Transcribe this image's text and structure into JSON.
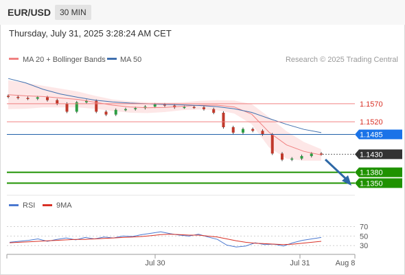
{
  "header": {
    "symbol": "EUR/USD",
    "timeframe": "30 MIN"
  },
  "datetime": "Thursday, July 31, 2025 3:28:24 AM CET",
  "legend": {
    "ma20": "MA 20 + Bollinger Bands",
    "ma50": "MA 50",
    "research": "Research © 2025 Trading Central",
    "rsi": "RSI",
    "rsi_ma": "9MA"
  },
  "colors": {
    "ma20": "#f08080",
    "ma50": "#3f6fae",
    "bollinger_fill": "#fde4e4",
    "bull": "#2e9e44",
    "bear": "#c0392b",
    "support": "#1f9200",
    "resistance": "#f08080",
    "pivot": "#1f5fa8",
    "badge_blue": "#1a73e8",
    "badge_dark": "#333333",
    "badge_green": "#1f9200",
    "arrow": "#2d68a6",
    "rsi": "#4a78d0",
    "rsi_ma": "#d93025"
  },
  "chart_data": [
    {
      "type": "line",
      "title": "EUR/USD 30 MIN",
      "price_range": [
        1.1324,
        1.1667
      ],
      "current_price": 1.143,
      "levels": [
        {
          "value": 1.157,
          "label": "1.1570",
          "kind": "resistance"
        },
        {
          "value": 1.152,
          "label": "1.1520",
          "kind": "resistance"
        },
        {
          "value": 1.1485,
          "label": "1.1485",
          "kind": "pivot"
        },
        {
          "value": 1.143,
          "label": "1.1430",
          "kind": "current"
        },
        {
          "value": 1.138,
          "label": "1.1380",
          "kind": "support"
        },
        {
          "value": 1.135,
          "label": "1.1350",
          "kind": "support"
        }
      ],
      "x_ticks": [
        "Jul 30",
        "Jul 31",
        "Aug 8"
      ],
      "series": [
        {
          "name": "MA 20 + Bollinger Bands",
          "values": [
            1.1595,
            1.1592,
            1.159,
            1.1586,
            1.1582,
            1.1574,
            1.1566,
            1.1561,
            1.1559,
            1.156,
            1.1563,
            1.1566,
            1.1566,
            1.1561,
            1.1541,
            1.1491,
            1.1456,
            1.1438,
            1.1428
          ]
        },
        {
          "name": "MA 50",
          "values": [
            1.164,
            1.1628,
            1.161,
            1.1597,
            1.1588,
            1.158,
            1.1575,
            1.1572,
            1.157,
            1.1568,
            1.1567,
            1.1565,
            1.1562,
            1.1556,
            1.1546,
            1.1529,
            1.1513,
            1.1499,
            1.149
          ]
        },
        {
          "name": "Price",
          "values": [
            1.1589,
            1.1586,
            1.1584,
            1.1588,
            1.158,
            1.157,
            1.1548,
            1.1574,
            1.1578,
            1.1548,
            1.154,
            1.1553,
            1.1555,
            1.1558,
            1.1562,
            1.1568,
            1.1565,
            1.156,
            1.1561,
            1.156,
            1.1555,
            1.1545,
            1.1505,
            1.149,
            1.15,
            1.1495,
            1.1485,
            1.1432,
            1.1415,
            1.1418,
            1.1425,
            1.1432,
            1.143
          ]
        }
      ]
    },
    {
      "type": "line",
      "title": "RSI",
      "ylim": [
        0,
        100
      ],
      "y_ticks": [
        30,
        50,
        70
      ],
      "series": [
        {
          "name": "RSI",
          "values": [
            37,
            39,
            41,
            44,
            39,
            43,
            46,
            42,
            47,
            44,
            48,
            46,
            50,
            49,
            53,
            56,
            59,
            55,
            52,
            50,
            54,
            48,
            43,
            31,
            27,
            29,
            36,
            32,
            33,
            29,
            36,
            41,
            44,
            47
          ]
        },
        {
          "name": "9MA",
          "values": [
            36,
            37,
            38,
            39,
            40,
            41,
            42,
            43,
            43,
            44,
            45,
            46,
            47,
            48,
            49,
            51,
            53,
            54,
            53,
            52,
            52,
            50,
            48,
            44,
            40,
            37,
            35,
            34,
            33,
            32,
            33,
            35,
            37,
            39
          ]
        }
      ]
    }
  ]
}
